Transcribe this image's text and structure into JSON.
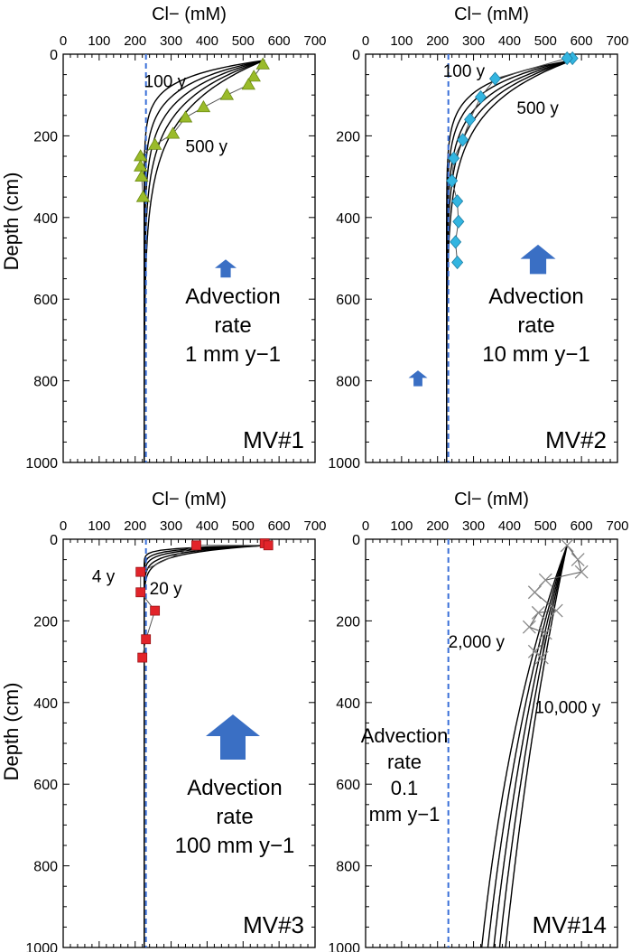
{
  "colors": {
    "reference_line": "#3a6fd8",
    "curve": "#000000",
    "obs_line": "#555555",
    "arrow": "#3a6fc4"
  },
  "chart_data": [
    {
      "type": "line",
      "panel_label": "MV#1",
      "xlabel": "Cl− (mM)",
      "ylabel": "Depth (cm)",
      "xlim": [
        0,
        700
      ],
      "ylim": [
        1000,
        0
      ],
      "x_ticks": [
        "0",
        "100",
        "200",
        "300",
        "400",
        "500",
        "600",
        "700"
      ],
      "y_ticks": [
        "0",
        "200",
        "400",
        "600",
        "800",
        "1000"
      ],
      "reference_line_x": 230,
      "curve_labels": [
        {
          "text": "100 y",
          "x": 225,
          "y": 65
        },
        {
          "text": "500 y",
          "x": 340,
          "y": 225
        }
      ],
      "model_params": {
        "c0": 225,
        "c_top": 560,
        "tau": [
          42,
          60,
          78,
          98,
          120
        ]
      },
      "observed": {
        "marker": "triangle",
        "color": "#9abb2a",
        "points": [
          [
            555,
            25
          ],
          [
            530,
            55
          ],
          [
            515,
            75
          ],
          [
            455,
            100
          ],
          [
            390,
            130
          ],
          [
            340,
            155
          ],
          [
            305,
            195
          ],
          [
            255,
            222
          ],
          [
            215,
            250
          ],
          [
            215,
            275
          ],
          [
            218,
            300
          ],
          [
            222,
            350
          ]
        ]
      },
      "advection": {
        "lines": [
          "Advection",
          "rate",
          "1 mm y−1"
        ],
        "arrow_scale": 0.4
      }
    },
    {
      "type": "line",
      "panel_label": "MV#2",
      "xlabel": "Cl− (mM)",
      "ylabel": "Depth (cm)",
      "xlim": [
        0,
        700
      ],
      "ylim": [
        1000,
        0
      ],
      "x_ticks": [
        "0",
        "100",
        "200",
        "300",
        "400",
        "500",
        "600",
        "700"
      ],
      "y_ticks": [
        "0",
        "200",
        "400",
        "600",
        "800",
        "1000"
      ],
      "reference_line_x": 230,
      "curve_labels": [
        {
          "text": "100 y",
          "x": 215,
          "y": 40
        },
        {
          "text": "500 y",
          "x": 420,
          "y": 130
        }
      ],
      "model_params": {
        "c0": 225,
        "c_top": 575,
        "tau": [
          52,
          65,
          80,
          95,
          112
        ]
      },
      "observed": {
        "marker": "diamond",
        "color": "#33b5e0",
        "points": [
          [
            575,
            10
          ],
          [
            560,
            10
          ],
          [
            360,
            60
          ],
          [
            320,
            105
          ],
          [
            290,
            160
          ],
          [
            270,
            210
          ],
          [
            245,
            255
          ],
          [
            240,
            310
          ],
          [
            255,
            360
          ],
          [
            258,
            410
          ],
          [
            250,
            460
          ],
          [
            255,
            510
          ]
        ]
      },
      "advection": {
        "lines": [
          "Advection",
          "rate",
          "10 mm y−1"
        ],
        "arrow_scale": 0.65
      }
    },
    {
      "type": "line",
      "panel_label": "MV#3",
      "xlabel": "Cl− (mM)",
      "ylabel": "Depth (cm)",
      "xlim": [
        0,
        700
      ],
      "ylim": [
        1000,
        0
      ],
      "x_ticks": [
        "0",
        "100",
        "200",
        "300",
        "400",
        "500",
        "600",
        "700"
      ],
      "y_ticks": [
        "0",
        "200",
        "400",
        "600",
        "800",
        "1000"
      ],
      "reference_line_x": 230,
      "curve_labels": [
        {
          "text": "4 y",
          "x": 80,
          "y": 90
        },
        {
          "text": "20 y",
          "x": 240,
          "y": 120
        }
      ],
      "model_params": {
        "c0": 225,
        "c_top": 565,
        "tau": [
          6,
          9,
          12,
          16,
          20
        ]
      },
      "observed": {
        "marker": "square",
        "color": "#e2242a",
        "points": [
          [
            560,
            10
          ],
          [
            570,
            15
          ],
          [
            370,
            15
          ],
          [
            215,
            80
          ],
          [
            215,
            130
          ],
          [
            255,
            175
          ],
          [
            230,
            245
          ],
          [
            220,
            290
          ]
        ]
      },
      "advection": {
        "lines": [
          "Advection",
          "rate",
          "100 mm y−1"
        ],
        "arrow_scale": 1.0
      }
    },
    {
      "type": "line",
      "panel_label": "MV#14",
      "xlabel": "Cl− (mM)",
      "ylabel": "Depth (cm)",
      "xlim": [
        0,
        700
      ],
      "ylim": [
        1000,
        0
      ],
      "x_ticks": [
        "0",
        "100",
        "200",
        "300",
        "400",
        "500",
        "600",
        "700"
      ],
      "y_ticks": [
        "0",
        "200",
        "400",
        "600",
        "800",
        "1000"
      ],
      "reference_line_x": 230,
      "curve_labels": [
        {
          "text": "2,000 y",
          "x": 230,
          "y": 250
        },
        {
          "text": "10,000 y",
          "x": 470,
          "y": 410
        }
      ],
      "model_params": {
        "c0": 225,
        "c_top": 560,
        "tau": [
          800,
          920,
          1050,
          1200,
          1380
        ]
      },
      "observed": {
        "marker": "cross",
        "color": "#888888",
        "points": [
          [
            560,
            15
          ],
          [
            590,
            50
          ],
          [
            600,
            80
          ],
          [
            500,
            100
          ],
          [
            470,
            130
          ],
          [
            530,
            175
          ],
          [
            480,
            180
          ],
          [
            455,
            215
          ],
          [
            500,
            230
          ],
          [
            490,
            290
          ],
          [
            470,
            275
          ]
        ]
      },
      "advection": {
        "lines": [
          "Advection",
          "rate",
          "0.1",
          "mm y−1"
        ],
        "arrow_scale": 0.35
      }
    }
  ]
}
